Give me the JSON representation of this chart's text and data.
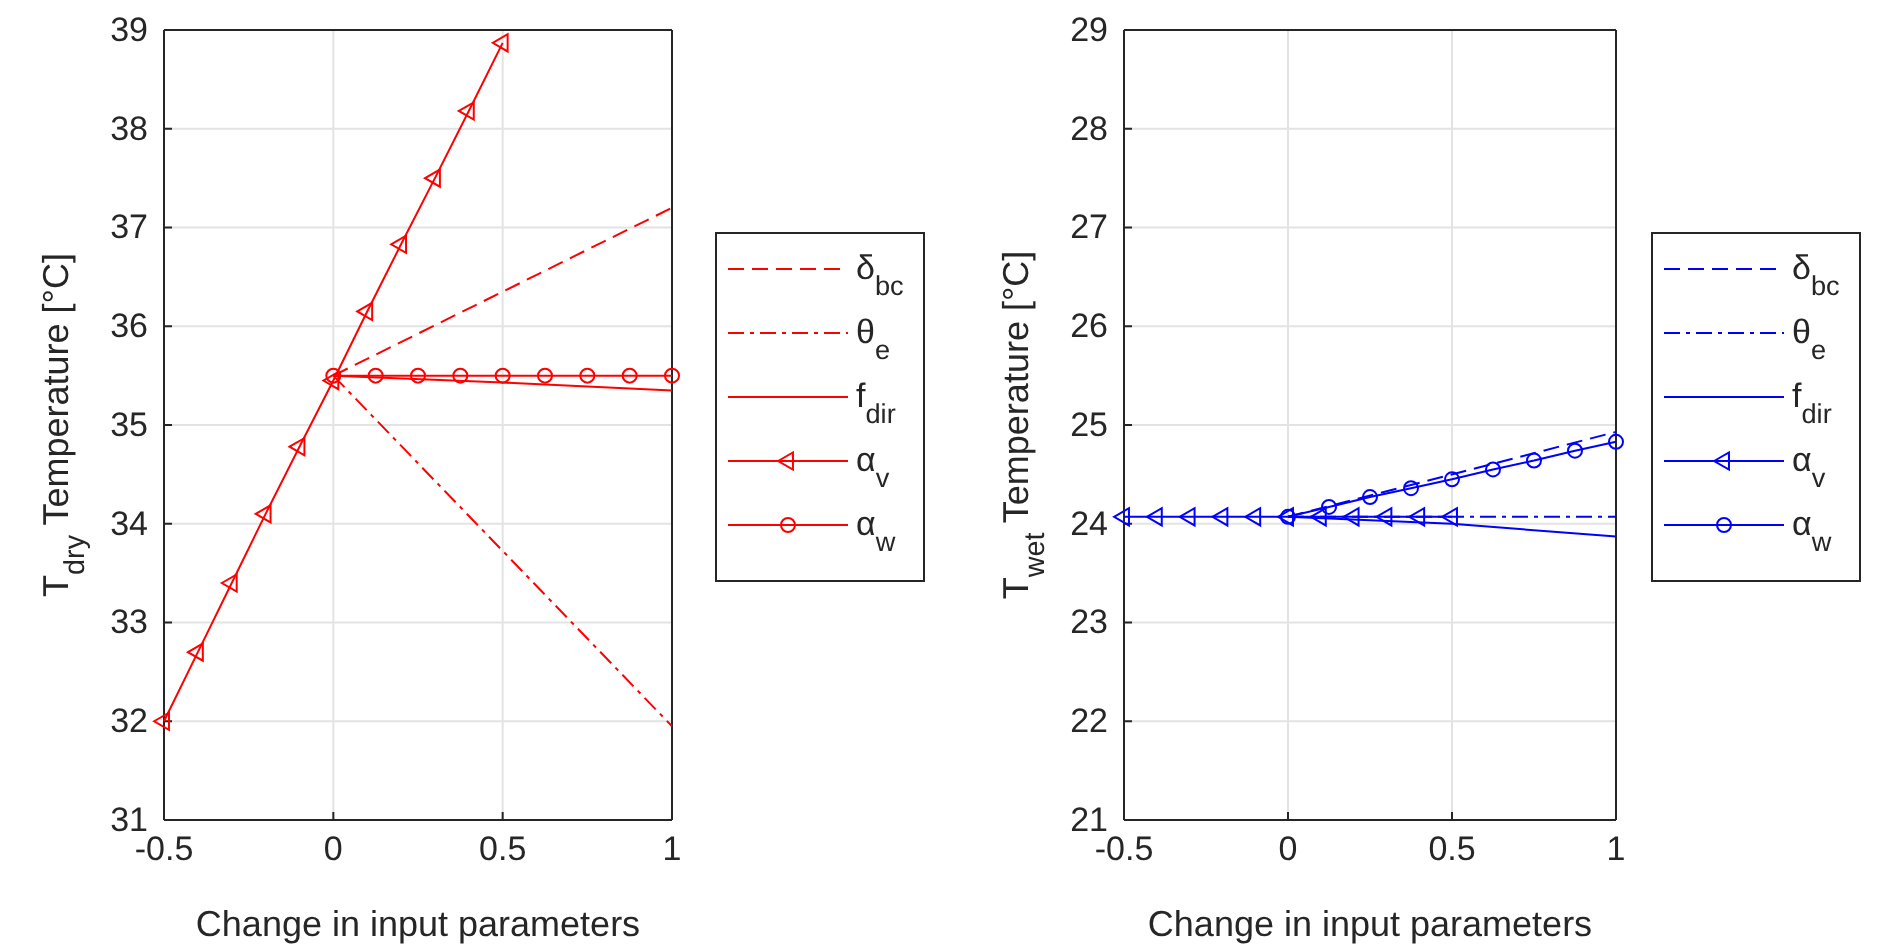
{
  "chart_data": [
    {
      "type": "line",
      "xlabel": "Change in input parameters",
      "ylabel": "T$_{dry}$ Temperature [°C]",
      "xlim": [
        -0.5,
        1
      ],
      "xticks": [
        -0.5,
        0,
        0.5,
        1
      ],
      "ylim": [
        31,
        39
      ],
      "yticks": [
        31,
        32,
        33,
        34,
        35,
        36,
        37,
        38,
        39
      ],
      "grid": true,
      "legend": "right",
      "series": [
        {
          "name": "δ$_{bc}$",
          "color": "#ff0000",
          "line_style": "dashed",
          "x": [
            0,
            1
          ],
          "values": [
            35.5,
            37.2
          ]
        },
        {
          "name": "θ$_{e}$",
          "color": "#ff0000",
          "line_style": "dashdot",
          "x": [
            0,
            1
          ],
          "values": [
            35.5,
            31.95
          ]
        },
        {
          "name": "f$_{dir}$",
          "color": "#ff0000",
          "line_style": "solid",
          "x": [
            0,
            0.5,
            1
          ],
          "values": [
            35.5,
            35.43,
            35.35
          ]
        },
        {
          "name": "α$_{v}$",
          "color": "#ff0000",
          "line_style": "solid",
          "marker": "triangle",
          "x": [
            -0.5,
            -0.4,
            -0.3,
            -0.2,
            -0.1,
            0,
            0.1,
            0.2,
            0.3,
            0.4,
            0.5
          ],
          "values": [
            32.0,
            32.7,
            33.4,
            34.1,
            34.78,
            35.45,
            36.15,
            36.83,
            37.5,
            38.18,
            38.87
          ]
        },
        {
          "name": "α$_{w}$",
          "color": "#ff0000",
          "line_style": "solid",
          "marker": "circle",
          "x": [
            0,
            0.125,
            0.25,
            0.375,
            0.5,
            0.625,
            0.75,
            0.875,
            1
          ],
          "values": [
            35.5,
            35.5,
            35.5,
            35.5,
            35.5,
            35.5,
            35.5,
            35.5,
            35.5
          ]
        }
      ]
    },
    {
      "type": "line",
      "xlabel": "Change in input parameters",
      "ylabel": "T$_{wet}$ Temperature [°C]",
      "xlim": [
        -0.5,
        1
      ],
      "xticks": [
        -0.5,
        0,
        0.5,
        1
      ],
      "ylim": [
        21,
        29
      ],
      "yticks": [
        21,
        22,
        23,
        24,
        25,
        26,
        27,
        28,
        29
      ],
      "grid": true,
      "legend": "right",
      "series": [
        {
          "name": "δ$_{bc}$",
          "color": "#0000ff",
          "line_style": "dashed",
          "x": [
            0,
            1
          ],
          "values": [
            24.07,
            24.93
          ]
        },
        {
          "name": "θ$_{e}$",
          "color": "#0000ff",
          "line_style": "dashdot",
          "x": [
            0,
            1
          ],
          "values": [
            24.07,
            24.07
          ]
        },
        {
          "name": "f$_{dir}$",
          "color": "#0000ff",
          "line_style": "solid",
          "x": [
            0,
            0.5,
            1
          ],
          "values": [
            24.07,
            24.0,
            23.87
          ]
        },
        {
          "name": "α$_{v}$",
          "color": "#0000ff",
          "line_style": "solid",
          "marker": "triangle",
          "x": [
            -0.5,
            -0.4,
            -0.3,
            -0.2,
            -0.1,
            0,
            0.1,
            0.2,
            0.3,
            0.4,
            0.5
          ],
          "values": [
            24.07,
            24.07,
            24.07,
            24.07,
            24.07,
            24.07,
            24.07,
            24.07,
            24.07,
            24.07,
            24.07
          ]
        },
        {
          "name": "α$_{w}$",
          "color": "#0000ff",
          "line_style": "solid",
          "marker": "circle",
          "x": [
            0,
            0.125,
            0.25,
            0.375,
            0.5,
            0.625,
            0.75,
            0.875,
            1
          ],
          "values": [
            24.07,
            24.17,
            24.27,
            24.36,
            24.45,
            24.55,
            24.64,
            24.74,
            24.83
          ]
        }
      ]
    }
  ]
}
